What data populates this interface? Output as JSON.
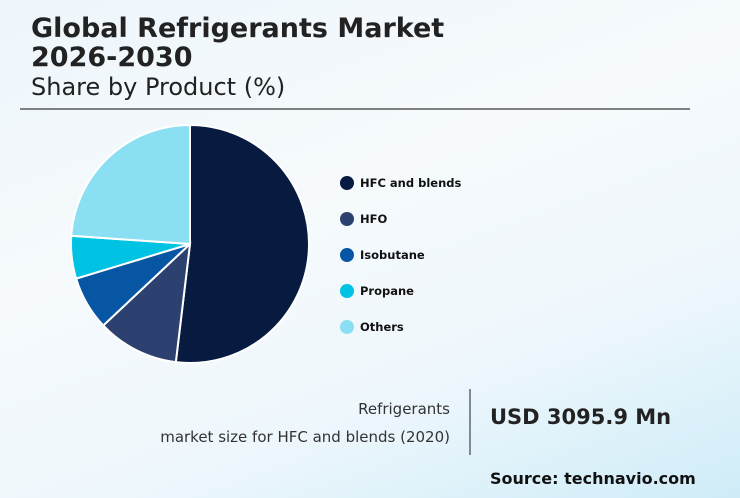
{
  "header": {
    "title_line1": "Global Refrigerants Market",
    "title_line2": "2026-2030",
    "subtitle": "Share by Product (%)"
  },
  "legend": {
    "items": [
      {
        "label": "HFC and blends",
        "color": "#071b40"
      },
      {
        "label": "HFO",
        "color": "#2c4170"
      },
      {
        "label": "Isobutane",
        "color": "#0656a4"
      },
      {
        "label": "Propane",
        "color": "#00c3e3"
      },
      {
        "label": "Others",
        "color": "#8ae0f2"
      }
    ]
  },
  "stat": {
    "label_line1": "Refrigerants",
    "label_line2": "market size for HFC and blends (2020)",
    "value": "USD 3095.9 Mn"
  },
  "footer": {
    "source": "Source: technavio.com"
  },
  "chart_data": {
    "type": "pie",
    "title": "Global Refrigerants Market 2026-2030",
    "subtitle": "Share by Product (%)",
    "categories": [
      "HFC and blends",
      "HFO",
      "Isobutane",
      "Propane",
      "Others"
    ],
    "values": [
      51.9,
      11.1,
      7.3,
      5.8,
      23.9
    ],
    "colors": [
      "#071b40",
      "#2c4170",
      "#0656a4",
      "#00c3e3",
      "#8ae0f2"
    ],
    "start_angle": "12 o'clock, clockwise",
    "legend_position": "right",
    "data_labels": false
  }
}
